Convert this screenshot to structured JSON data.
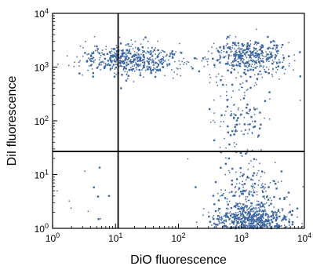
{
  "chart_data": {
    "type": "scatter",
    "xlabel": "DiO fluorescence",
    "ylabel": "DiI fluorescence",
    "x_scale": "log",
    "y_scale": "log",
    "xlim": [
      1,
      10000
    ],
    "ylim": [
      1,
      10000
    ],
    "x_ticks": [
      {
        "value": 1,
        "base": "10",
        "exp": "0"
      },
      {
        "value": 10,
        "base": "10",
        "exp": "1"
      },
      {
        "value": 100,
        "base": "10",
        "exp": "2"
      },
      {
        "value": 1000,
        "base": "10",
        "exp": "3"
      },
      {
        "value": 10000,
        "base": "10",
        "exp": "4"
      }
    ],
    "y_ticks": [
      {
        "value": 1,
        "base": "10",
        "exp": "0"
      },
      {
        "value": 10,
        "base": "10",
        "exp": "1"
      },
      {
        "value": 100,
        "base": "10",
        "exp": "2"
      },
      {
        "value": 1000,
        "base": "10",
        "exp": "3"
      },
      {
        "value": 10000,
        "base": "10",
        "exp": "4"
      }
    ],
    "quadrant_gates": {
      "x": 11,
      "y": 27
    },
    "grid": false,
    "point_color": "#3d67a3",
    "series": [
      {
        "clusters": [
          {
            "x_center": 20,
            "y_center": 1400,
            "x_sigma_log": 0.42,
            "y_sigma_log": 0.14,
            "count": 520
          },
          {
            "x_center": 1400,
            "y_center": 1500,
            "x_sigma_log": 0.32,
            "y_sigma_log": 0.17,
            "count": 420
          },
          {
            "x_center": 900,
            "y_center": 150,
            "x_sigma_log": 0.25,
            "y_sigma_log": 0.42,
            "count": 140
          },
          {
            "x_center": 1500,
            "y_center": 1.3,
            "x_sigma_log": 0.3,
            "y_sigma_log": 0.18,
            "count": 750
          },
          {
            "x_center": 1300,
            "y_center": 5,
            "x_sigma_log": 0.28,
            "y_sigma_log": 0.3,
            "count": 180
          },
          {
            "x_center": 4,
            "y_center": 3,
            "x_sigma_log": 0.35,
            "y_sigma_log": 0.35,
            "count": 12
          }
        ]
      }
    ]
  }
}
